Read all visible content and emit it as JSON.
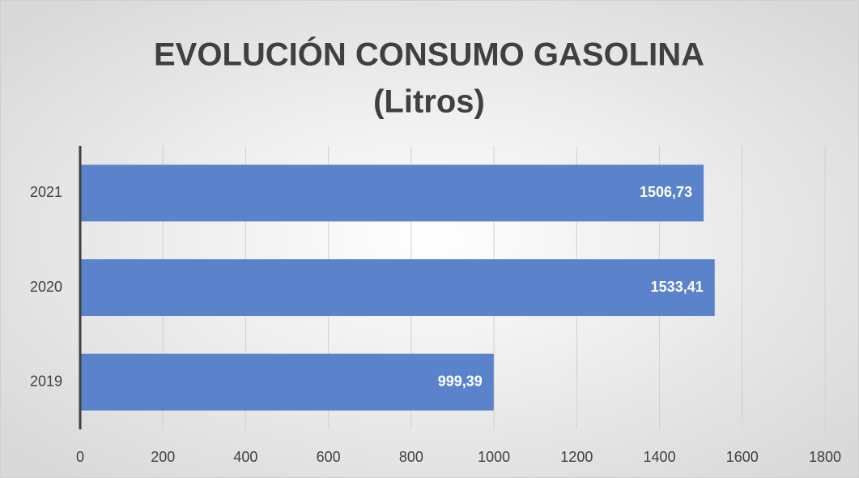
{
  "chart_data": {
    "type": "bar",
    "orientation": "horizontal",
    "title": [
      "EVOLUCIÓN CONSUMO GASOLINA",
      "(Litros)"
    ],
    "categories": [
      "2019",
      "2020",
      "2021"
    ],
    "values": [
      999.39,
      1533.41,
      1506.73
    ],
    "value_labels": [
      "999,39",
      "1533,41",
      "1506,73"
    ],
    "color": "#5b83cc",
    "xlim": [
      0,
      1800
    ],
    "xticks": [
      0,
      200,
      400,
      600,
      800,
      1000,
      1200,
      1400,
      1600,
      1800
    ],
    "grid": true
  }
}
